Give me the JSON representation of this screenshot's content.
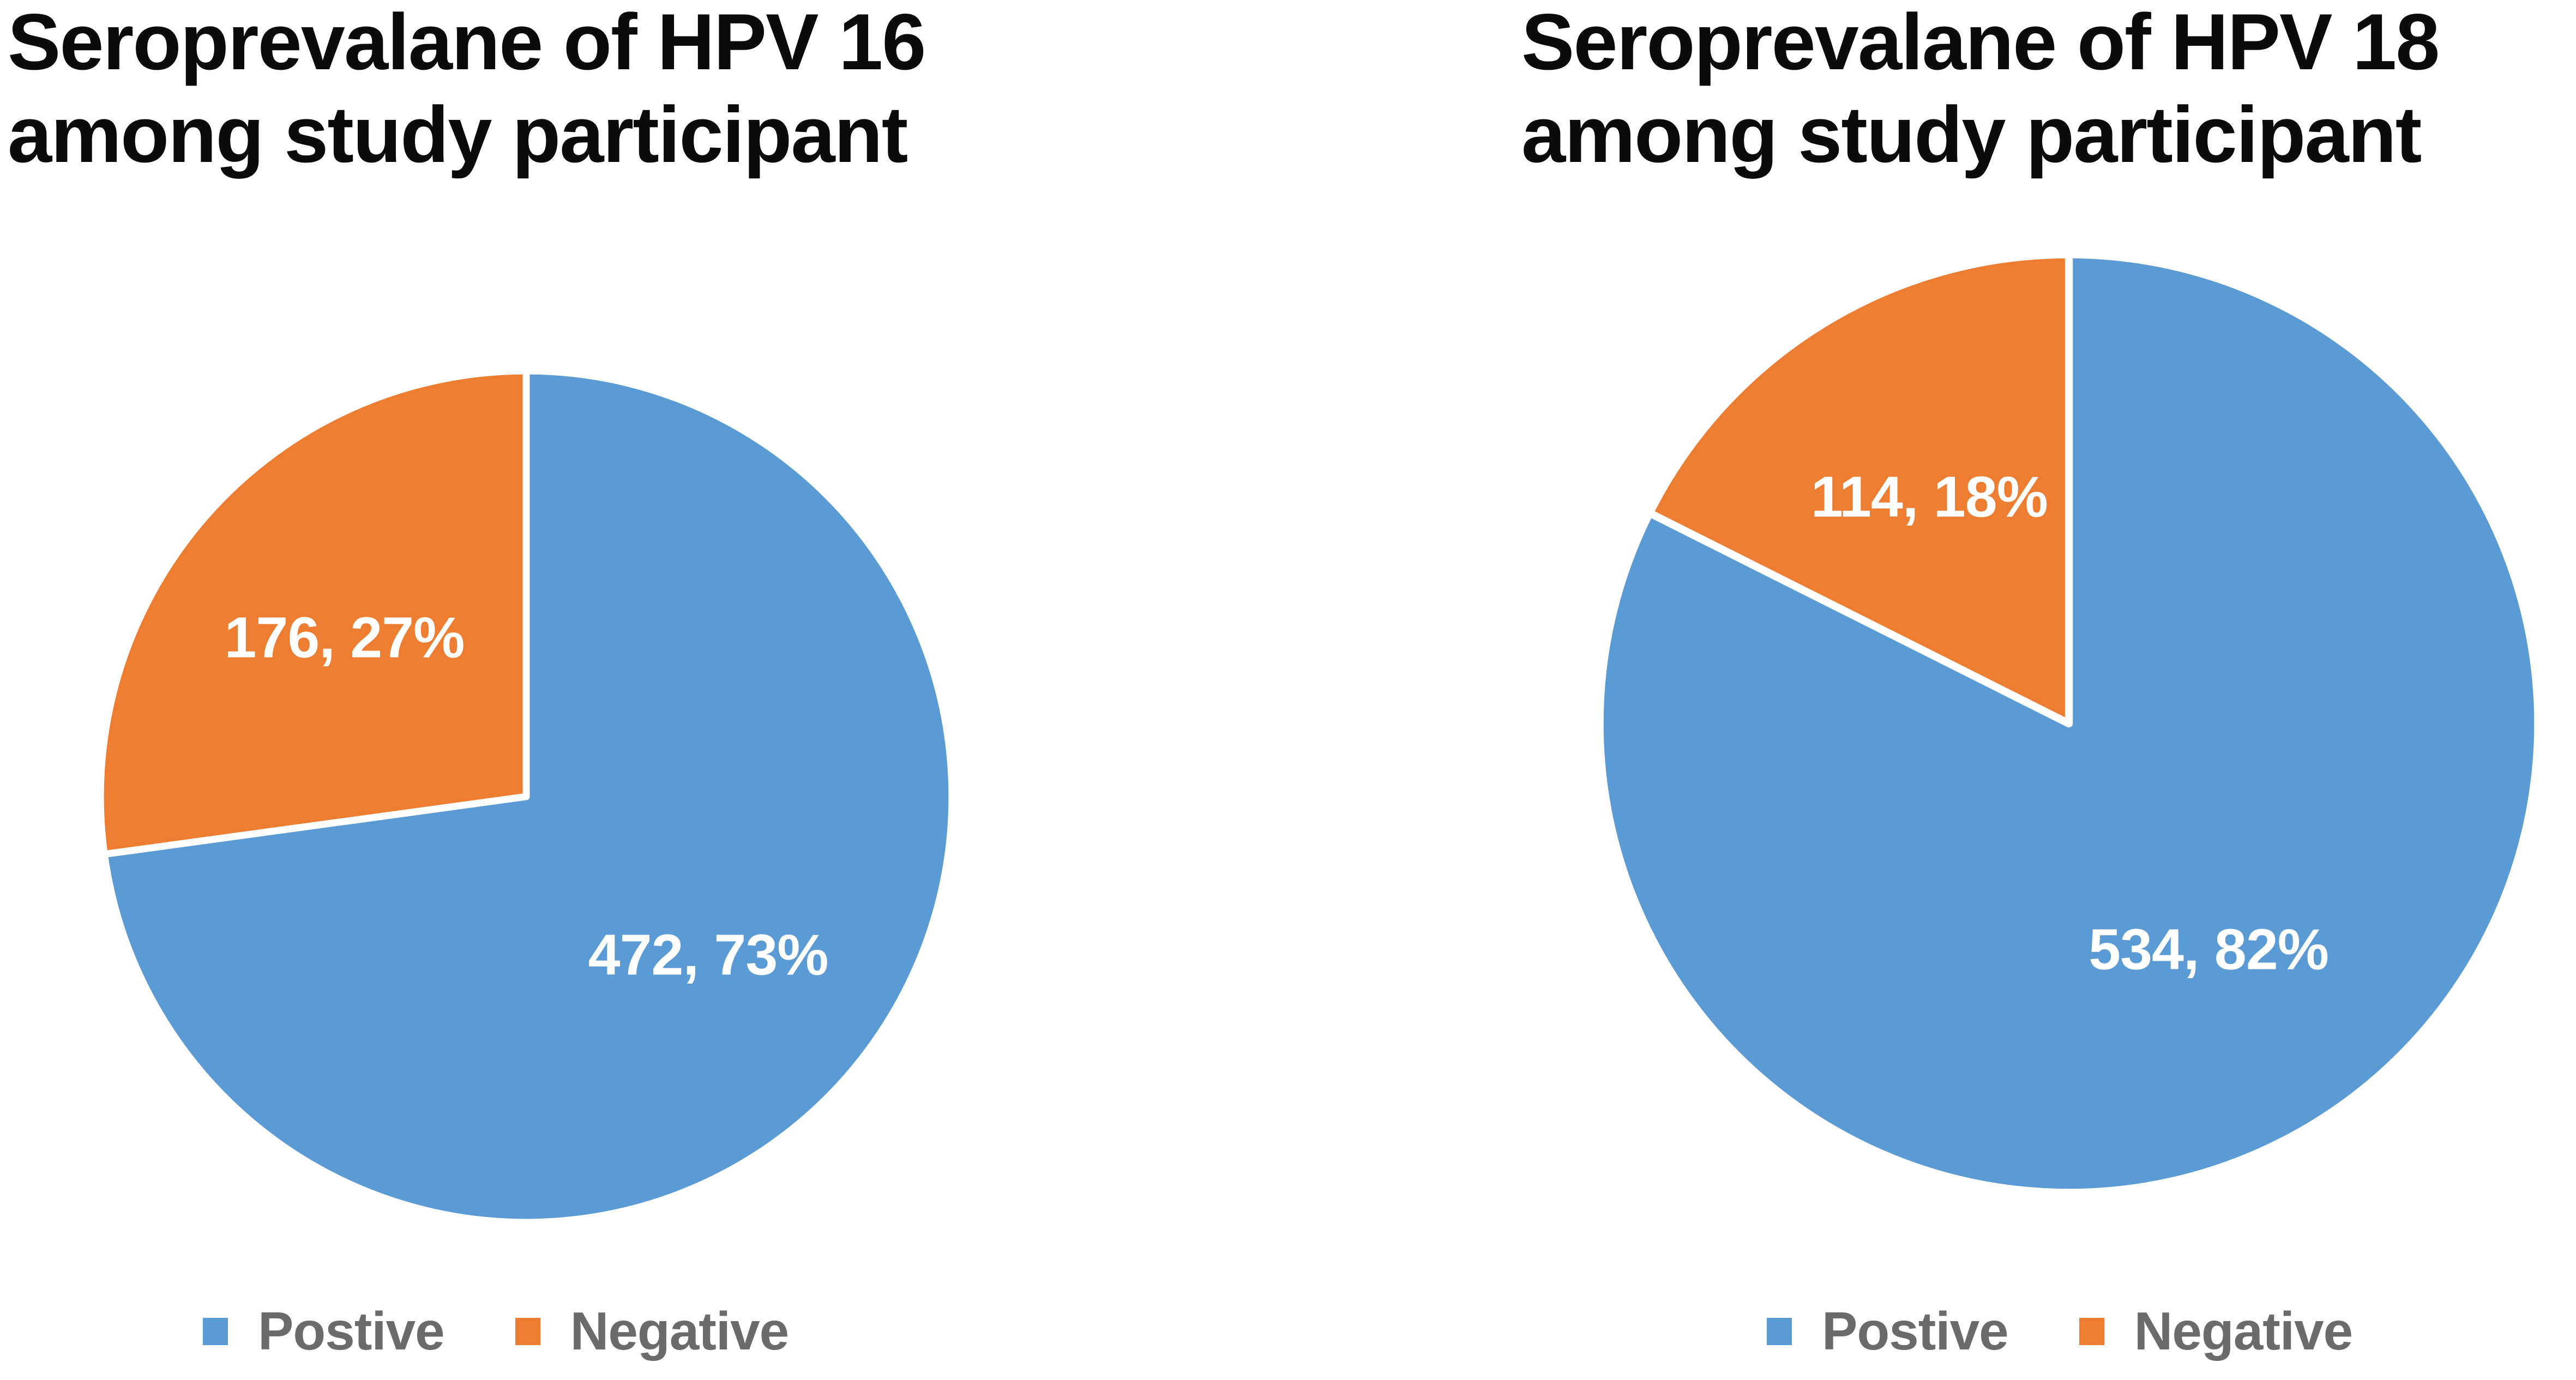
{
  "figure": {
    "background": "#FFFFFF",
    "title_color": "#0B0B0B",
    "legend_text_color": "#6B6B6B",
    "data_label_color": "#FFFFFF"
  },
  "chart_data": [
    {
      "type": "pie",
      "title": "Seroprevalane of HPV 16 among study participant",
      "title_lines": [
        "Seroprevalane of HPV 16",
        "among study participant"
      ],
      "start_angle_deg": 0,
      "direction": "clockwise",
      "legend_position": "bottom",
      "grid": false,
      "slices": [
        {
          "label": "Postive",
          "value": 472,
          "pct": 73,
          "data_label": "472, 73%",
          "color": "#5B9BD5"
        },
        {
          "label": "Negative",
          "value": 176,
          "pct": 27,
          "data_label": "176, 27%",
          "color": "#ED7D31"
        }
      ]
    },
    {
      "type": "pie",
      "title": "Seroprevalane of HPV 18 among study participant",
      "title_lines": [
        "Seroprevalane of HPV 18",
        "among study participant"
      ],
      "start_angle_deg": 0,
      "direction": "clockwise",
      "legend_position": "bottom",
      "grid": false,
      "slices": [
        {
          "label": "Postive",
          "value": 534,
          "pct": 82,
          "data_label": "534, 82%",
          "color": "#5B9BD5"
        },
        {
          "label": "Negative",
          "value": 114,
          "pct": 18,
          "data_label": "114, 18%",
          "color": "#ED7D31"
        }
      ]
    }
  ]
}
